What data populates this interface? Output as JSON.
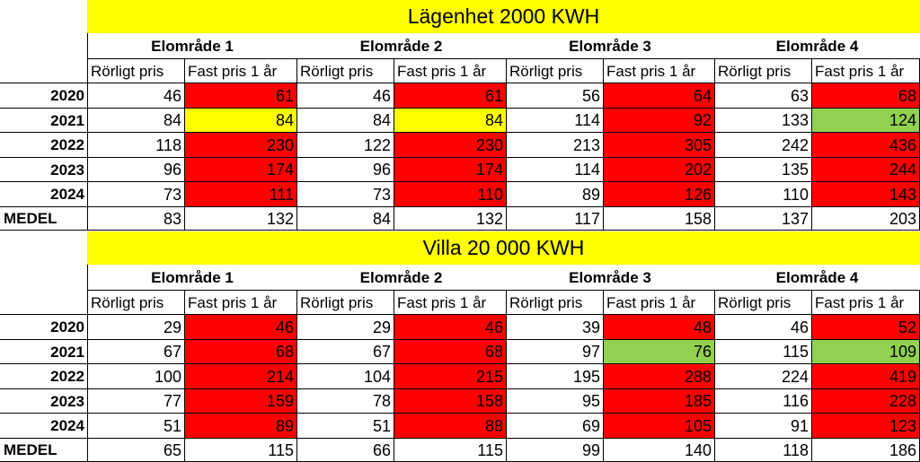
{
  "sections": [
    {
      "title": "Lägenhet 2000 KWH",
      "areas": [
        "Elområde 1",
        "Elområde 2",
        "Elområde 3",
        "Elområde 4"
      ],
      "subheaders": [
        "Rörligt pris",
        "Fast pris 1 år"
      ],
      "rows": [
        {
          "label": "2020",
          "values": [
            "46",
            "61",
            "46",
            "61",
            "56",
            "64",
            "63",
            "68"
          ],
          "fills": [
            "",
            "red",
            "",
            "red",
            "",
            "red",
            "",
            "red"
          ]
        },
        {
          "label": "2021",
          "values": [
            "84",
            "84",
            "84",
            "84",
            "114",
            "92",
            "133",
            "124"
          ],
          "fills": [
            "",
            "yellow",
            "",
            "yellow",
            "",
            "red",
            "",
            "green"
          ]
        },
        {
          "label": "2022",
          "values": [
            "118",
            "230",
            "122",
            "230",
            "213",
            "305",
            "242",
            "436"
          ],
          "fills": [
            "",
            "red",
            "",
            "red",
            "",
            "red",
            "",
            "red"
          ]
        },
        {
          "label": "2023",
          "values": [
            "96",
            "174",
            "96",
            "174",
            "114",
            "202",
            "135",
            "244"
          ],
          "fills": [
            "",
            "red",
            "",
            "red",
            "",
            "red",
            "",
            "red"
          ]
        },
        {
          "label": "2024",
          "values": [
            "73",
            "111",
            "73",
            "110",
            "89",
            "126",
            "110",
            "143"
          ],
          "fills": [
            "",
            "red",
            "",
            "red",
            "",
            "red",
            "",
            "red"
          ]
        },
        {
          "label": "MEDEL",
          "values": [
            "83",
            "132",
            "84",
            "132",
            "117",
            "158",
            "137",
            "203"
          ],
          "fills": [
            "",
            "",
            "",
            "",
            "",
            "",
            "",
            ""
          ]
        }
      ]
    },
    {
      "title": "Villa 20 000 KWH",
      "areas": [
        "Elområde 1",
        "Elområde 2",
        "Elområde 3",
        "Elområde 4"
      ],
      "subheaders": [
        "Rörligt pris",
        "Fast pris 1 år"
      ],
      "rows": [
        {
          "label": "2020",
          "values": [
            "29",
            "46",
            "29",
            "46",
            "39",
            "48",
            "46",
            "52"
          ],
          "fills": [
            "",
            "red",
            "",
            "red",
            "",
            "red",
            "",
            "red"
          ]
        },
        {
          "label": "2021",
          "values": [
            "67",
            "68",
            "67",
            "68",
            "97",
            "76",
            "115",
            "109"
          ],
          "fills": [
            "",
            "red",
            "",
            "red",
            "",
            "green",
            "",
            "green"
          ]
        },
        {
          "label": "2022",
          "values": [
            "100",
            "214",
            "104",
            "215",
            "195",
            "288",
            "224",
            "419"
          ],
          "fills": [
            "",
            "red",
            "",
            "red",
            "",
            "red",
            "",
            "red"
          ]
        },
        {
          "label": "2023",
          "values": [
            "77",
            "159",
            "78",
            "158",
            "95",
            "185",
            "116",
            "228"
          ],
          "fills": [
            "",
            "red",
            "",
            "red",
            "",
            "red",
            "",
            "red"
          ]
        },
        {
          "label": "2024",
          "values": [
            "51",
            "89",
            "51",
            "88",
            "69",
            "105",
            "91",
            "123"
          ],
          "fills": [
            "",
            "red",
            "",
            "red",
            "",
            "red",
            "",
            "red"
          ]
        },
        {
          "label": "MEDEL",
          "values": [
            "65",
            "115",
            "66",
            "115",
            "99",
            "140",
            "118",
            "186"
          ],
          "fills": [
            "",
            "",
            "",
            "",
            "",
            "",
            "",
            ""
          ]
        }
      ]
    }
  ],
  "colors": {
    "red": "#ff0000",
    "yellow": "#ffff00",
    "green": "#92d050"
  }
}
